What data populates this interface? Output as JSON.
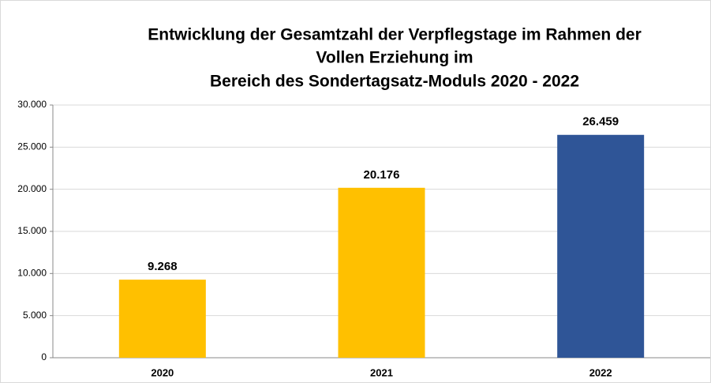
{
  "chart_data": {
    "type": "bar",
    "title": [
      "Entwicklung der Gesamtzahl der Verpflegstage im Rahmen der",
      "Vollen Erziehung im",
      "Bereich des Sondertagsatz-Moduls 2020 - 2022"
    ],
    "categories": [
      "2020",
      "2021",
      "2022"
    ],
    "values": [
      9268,
      20176,
      26459
    ],
    "value_labels": [
      "9.268",
      "20.176",
      "26.459"
    ],
    "colors": [
      "#ffc000",
      "#ffc000",
      "#2f5597"
    ],
    "ylim": [
      0,
      30000
    ],
    "yticks": [
      0,
      {
        "value": 5000,
        "label": "5.000"
      },
      {
        "value": 10000,
        "label": "10.000"
      },
      {
        "value": 15000,
        "label": "15.000"
      },
      {
        "value": 20000,
        "label": "20.000"
      },
      {
        "value": 25000,
        "label": "25.000"
      },
      {
        "value": 30000,
        "label": "30.000"
      }
    ],
    "grid": true
  }
}
